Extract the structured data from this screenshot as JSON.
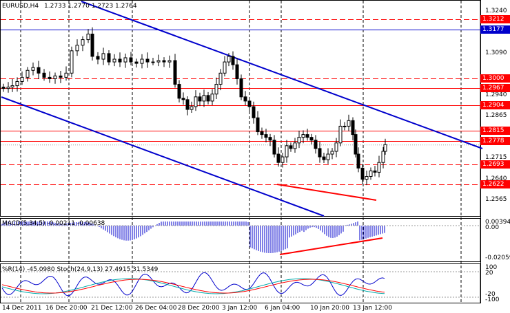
{
  "header": {
    "symbol_tf": "EURUSD,H4",
    "ohlc": "1.2733 1.2770 1.2723 1.2764",
    "macd_label": "MACD(5,34,5) -0.00211 -0.00638",
    "osc_label": "%R(14) -45.0980  Stoch(24,9,13) 27.4915 31.5349"
  },
  "price_axis": {
    "ticks": [
      "1.3240",
      "1.3090",
      "1.2940",
      "1.2865",
      "1.2715",
      "1.2640",
      "1.2565"
    ],
    "levels": [
      {
        "label": "1.3212",
        "color": "#ff0000",
        "style": "dashed"
      },
      {
        "label": "1.3177",
        "color": "#0000cc",
        "style": "solid"
      },
      {
        "label": "1.3000",
        "color": "#ff0000",
        "style": "dashed"
      },
      {
        "label": "1.2967",
        "color": "#ff0000",
        "style": "solid"
      },
      {
        "label": "1.2904",
        "color": "#ff0000",
        "style": "solid"
      },
      {
        "label": "1.2815",
        "color": "#ff0000",
        "style": "solid"
      },
      {
        "label": "1.2778",
        "color": "#ff0000",
        "style": "solid"
      },
      {
        "label": "1.2693",
        "color": "#ff0000",
        "style": "dashed"
      },
      {
        "label": "1.2622",
        "color": "#ff0000",
        "style": "dashed"
      }
    ]
  },
  "macd_axis": {
    "ticks": [
      "0.00394",
      "0.00",
      "-0.02059"
    ]
  },
  "osc_axis": {
    "ticks": [
      "100",
      "20",
      "-20",
      "-100"
    ]
  },
  "time_axis": {
    "labels": [
      "14 Dec 2011",
      "16 Dec 20:00",
      "21 Dec 12:00",
      "26 Dec 04:00",
      "28 Dec 20:00",
      "3 Jan 12:00",
      "6 Jan 04:00",
      "10 Jan 20:00",
      "13 Jan 12:00"
    ]
  },
  "colors": {
    "candles": "#000000",
    "channel": "#0000cc",
    "support_resistance": "#ff0000",
    "macd_hist": "#0000cc",
    "divergence": "#ff0000",
    "wpr": "#0000cc",
    "stoch_main": "#00aaaa",
    "stoch_signal": "#ff0000"
  }
}
